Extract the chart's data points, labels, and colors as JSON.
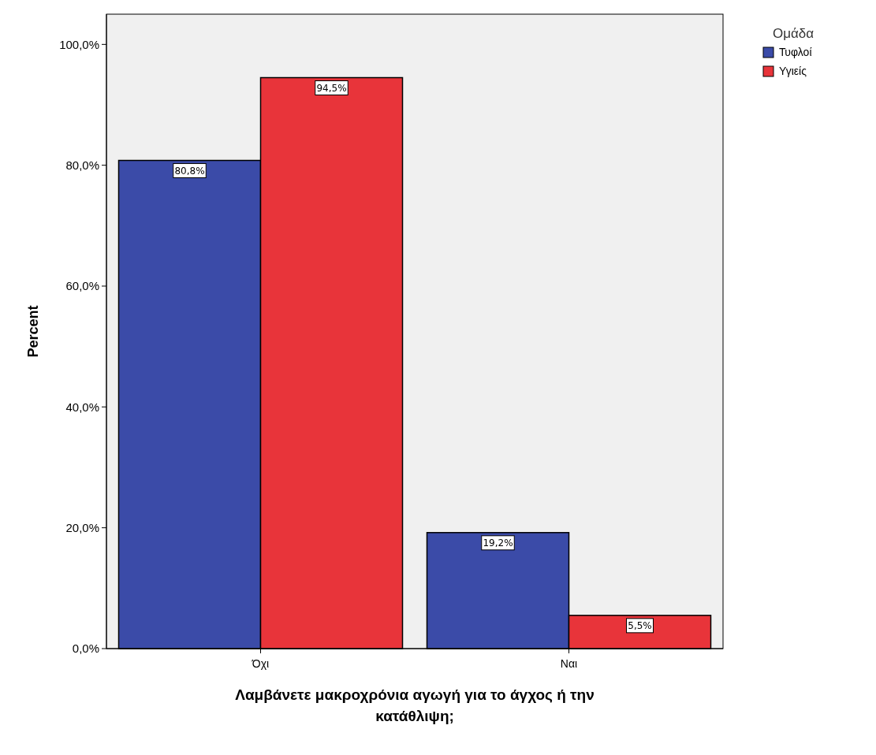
{
  "chart_data": {
    "type": "bar",
    "xlabel": "Λαμβάνετε μακροχρόνια αγωγή για το άγχος ή την κατάθλιψη;",
    "ylabel": "Percent",
    "legend_title": "Ομάδα",
    "categories": [
      "Όχι",
      "Ναι"
    ],
    "series": [
      {
        "name": "Τυφλοί",
        "color": "#3b4ba8",
        "values": [
          80.8,
          19.2
        ],
        "value_labels": [
          "80,8%",
          "19,2%"
        ]
      },
      {
        "name": "Υγιείς",
        "color": "#e8343a",
        "values": [
          94.5,
          5.5
        ],
        "value_labels": [
          "94,5%",
          "5,5%"
        ]
      }
    ],
    "ylim": [
      0,
      105
    ],
    "yticks": [
      {
        "value": 0,
        "label": "0,0%"
      },
      {
        "value": 20,
        "label": "20,0%"
      },
      {
        "value": 40,
        "label": "40,0%"
      },
      {
        "value": 60,
        "label": "60,0%"
      },
      {
        "value": 80,
        "label": "80,0%"
      },
      {
        "value": 100,
        "label": "100,0%"
      }
    ],
    "grid": false,
    "legend": "top right"
  }
}
